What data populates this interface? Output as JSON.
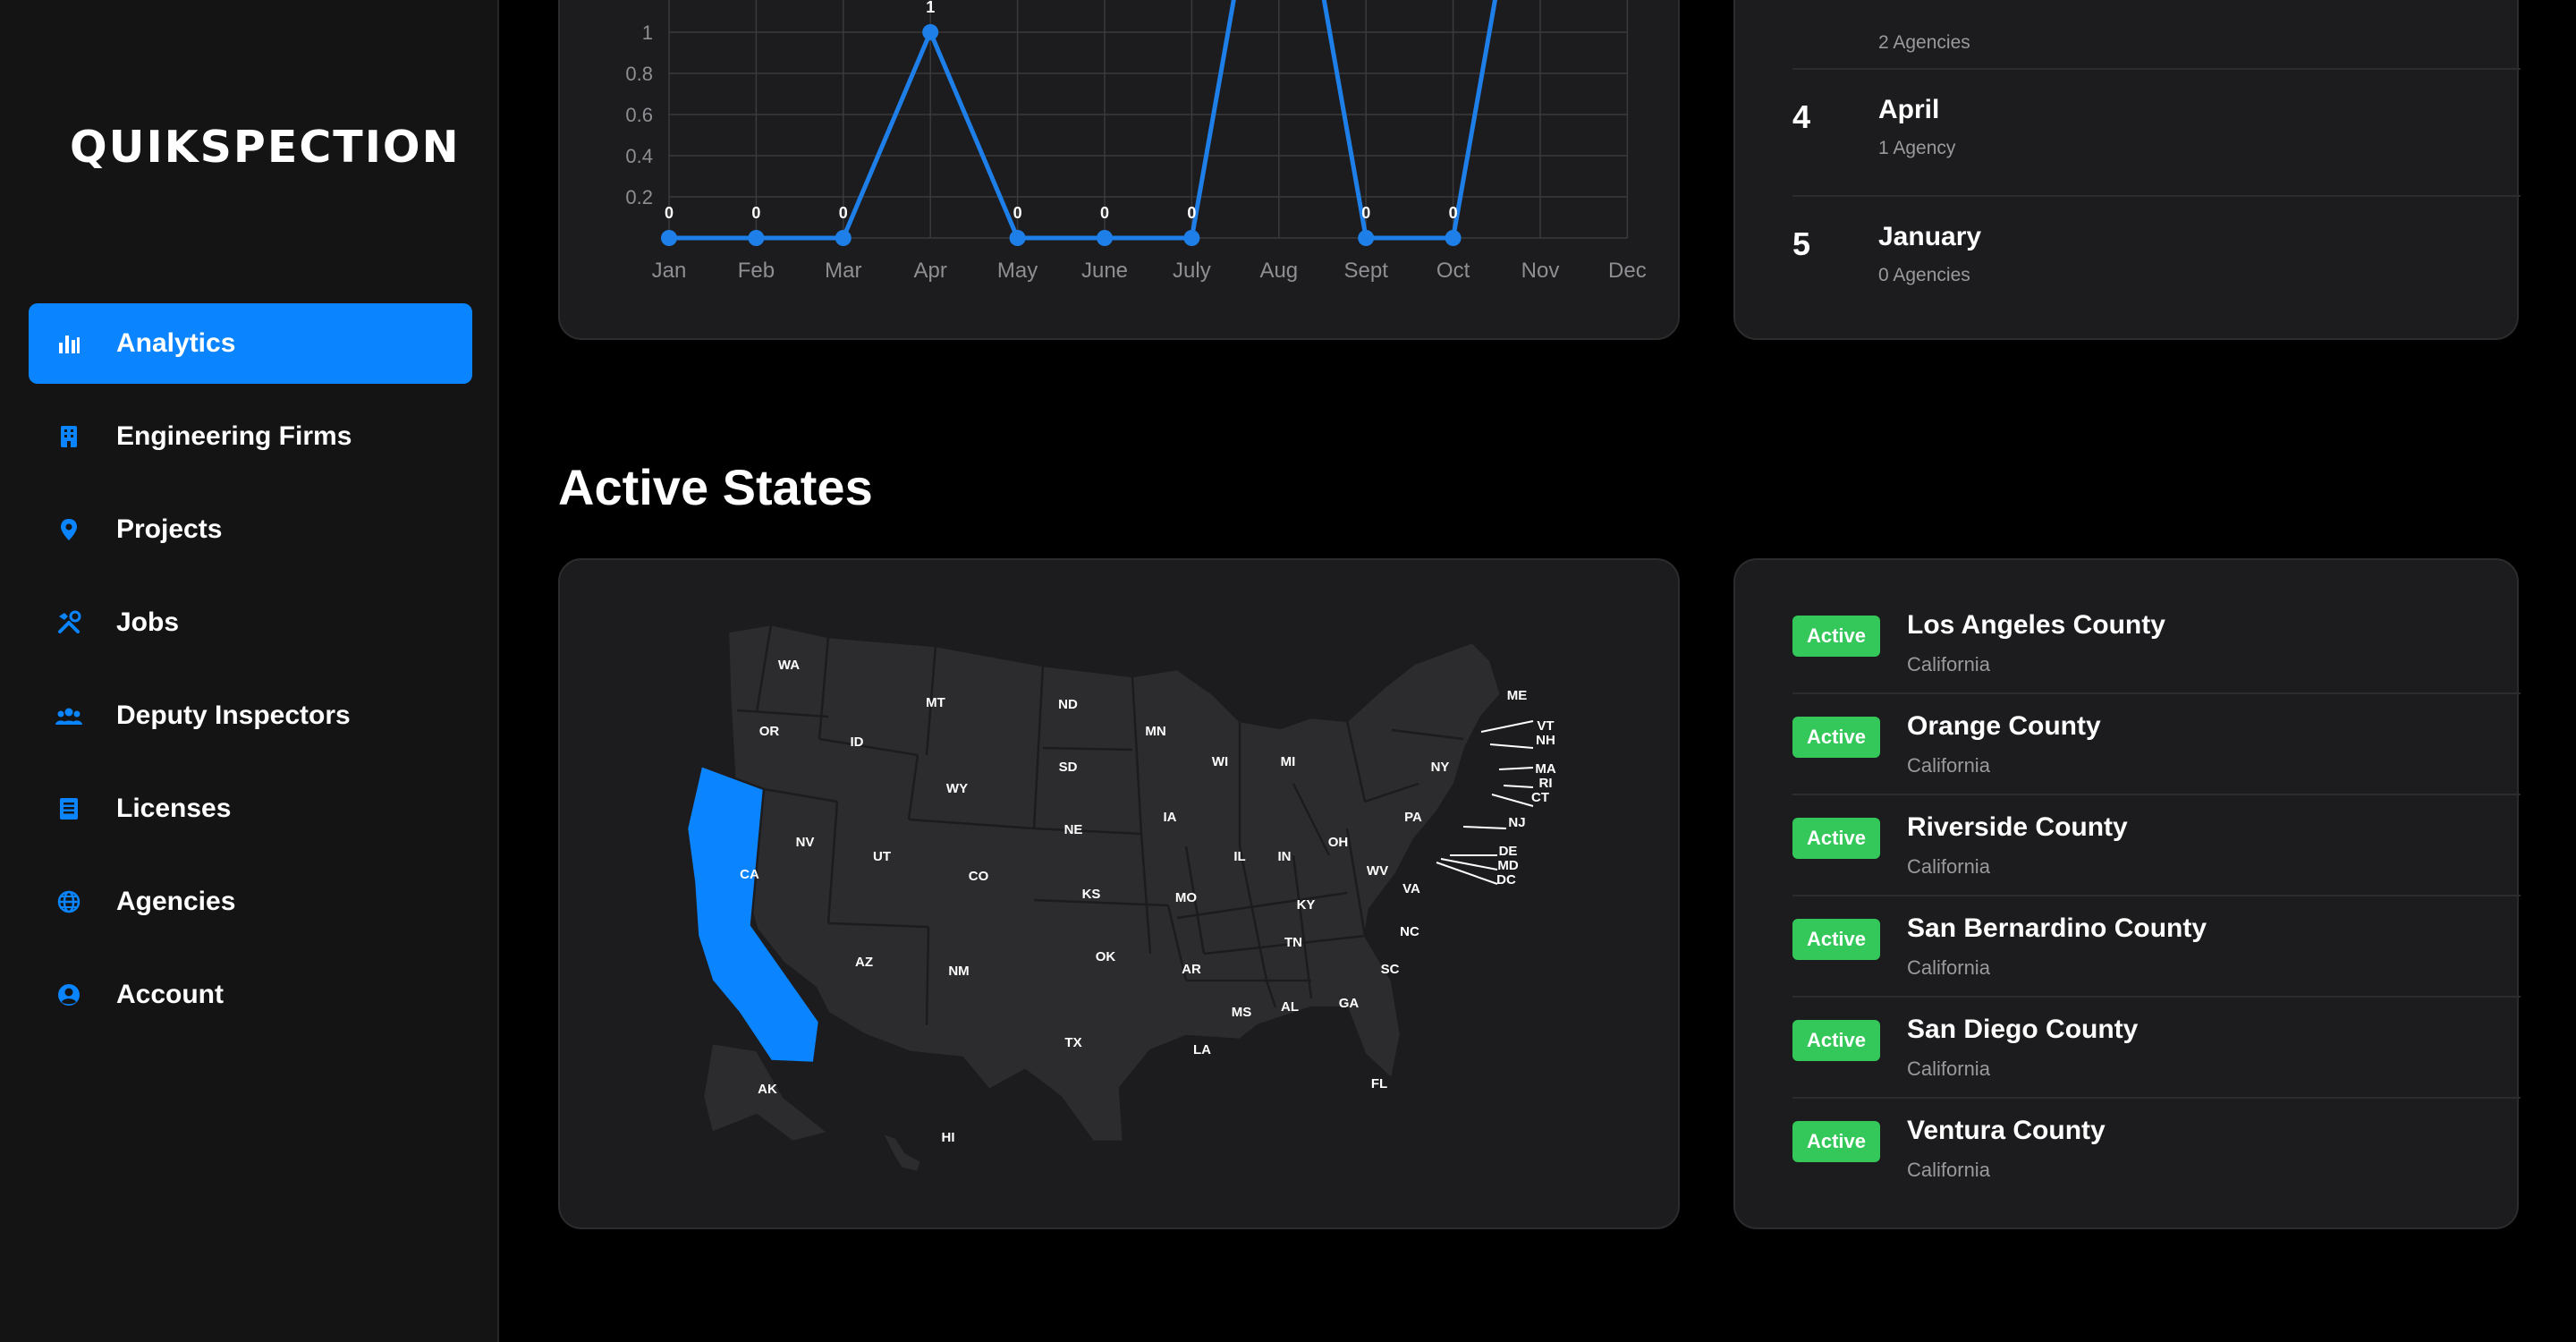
{
  "brand": "QUIKSPECTION",
  "sidebar": {
    "items": [
      {
        "label": "Analytics",
        "icon": "bar-chart-icon",
        "active": true
      },
      {
        "label": "Engineering Firms",
        "icon": "building-icon",
        "active": false
      },
      {
        "label": "Projects",
        "icon": "map-pin-icon",
        "active": false
      },
      {
        "label": "Jobs",
        "icon": "tools-icon",
        "active": false
      },
      {
        "label": "Deputy Inspectors",
        "icon": "people-icon",
        "active": false
      },
      {
        "label": "Licenses",
        "icon": "document-list-icon",
        "active": false
      },
      {
        "label": "Agencies",
        "icon": "globe-icon",
        "active": false
      },
      {
        "label": "Account",
        "icon": "user-circle-icon",
        "active": false
      }
    ]
  },
  "chart_data": {
    "type": "line",
    "categories": [
      "Jan",
      "Feb",
      "Mar",
      "Apr",
      "May",
      "June",
      "July",
      "Aug",
      "Sept",
      "Oct",
      "Nov",
      "Dec"
    ],
    "series": [
      {
        "values": [
          0,
          0,
          0,
          1,
          0,
          0,
          0,
          null,
          0,
          0,
          null,
          null
        ]
      }
    ],
    "y_ticks": [
      "0.2",
      "0.4",
      "0.6",
      "0.8",
      "1"
    ],
    "point_labels": [
      "0",
      "0",
      "0",
      "1",
      "0",
      "0",
      "0",
      "",
      "0",
      "0",
      "",
      ""
    ],
    "ylim": [
      0,
      1
    ],
    "grid": true,
    "color": "#1e7fe8"
  },
  "ranking": {
    "partial_sub": "2 Agencies",
    "items": [
      {
        "rank": "4",
        "month": "April",
        "count": "1 Agency"
      },
      {
        "rank": "5",
        "month": "January",
        "count": "0 Agencies"
      }
    ]
  },
  "active_states": {
    "title": "Active States",
    "highlight_color": "#0a84ff",
    "state_fill": "#2c2c2e",
    "labels": [
      "WA",
      "OR",
      "CA",
      "NV",
      "ID",
      "MT",
      "WY",
      "UT",
      "CO",
      "AZ",
      "NM",
      "ND",
      "SD",
      "NE",
      "KS",
      "OK",
      "TX",
      "MN",
      "IA",
      "MO",
      "AR",
      "LA",
      "WI",
      "IL",
      "MI",
      "IN",
      "OH",
      "KY",
      "TN",
      "MS",
      "AL",
      "GA",
      "FL",
      "SC",
      "NC",
      "VA",
      "WV",
      "PA",
      "NY",
      "ME",
      "VT",
      "NH",
      "MA",
      "RI",
      "CT",
      "NJ",
      "DE",
      "MD",
      "DC",
      "AK",
      "HI"
    ]
  },
  "counties": {
    "items": [
      {
        "status": "Active",
        "name": "Los Angeles County",
        "state": "California"
      },
      {
        "status": "Active",
        "name": "Orange County",
        "state": "California"
      },
      {
        "status": "Active",
        "name": "Riverside County",
        "state": "California"
      },
      {
        "status": "Active",
        "name": "San Bernardino County",
        "state": "California"
      },
      {
        "status": "Active",
        "name": "San Diego County",
        "state": "California"
      },
      {
        "status": "Active",
        "name": "Ventura County",
        "state": "California"
      }
    ]
  }
}
